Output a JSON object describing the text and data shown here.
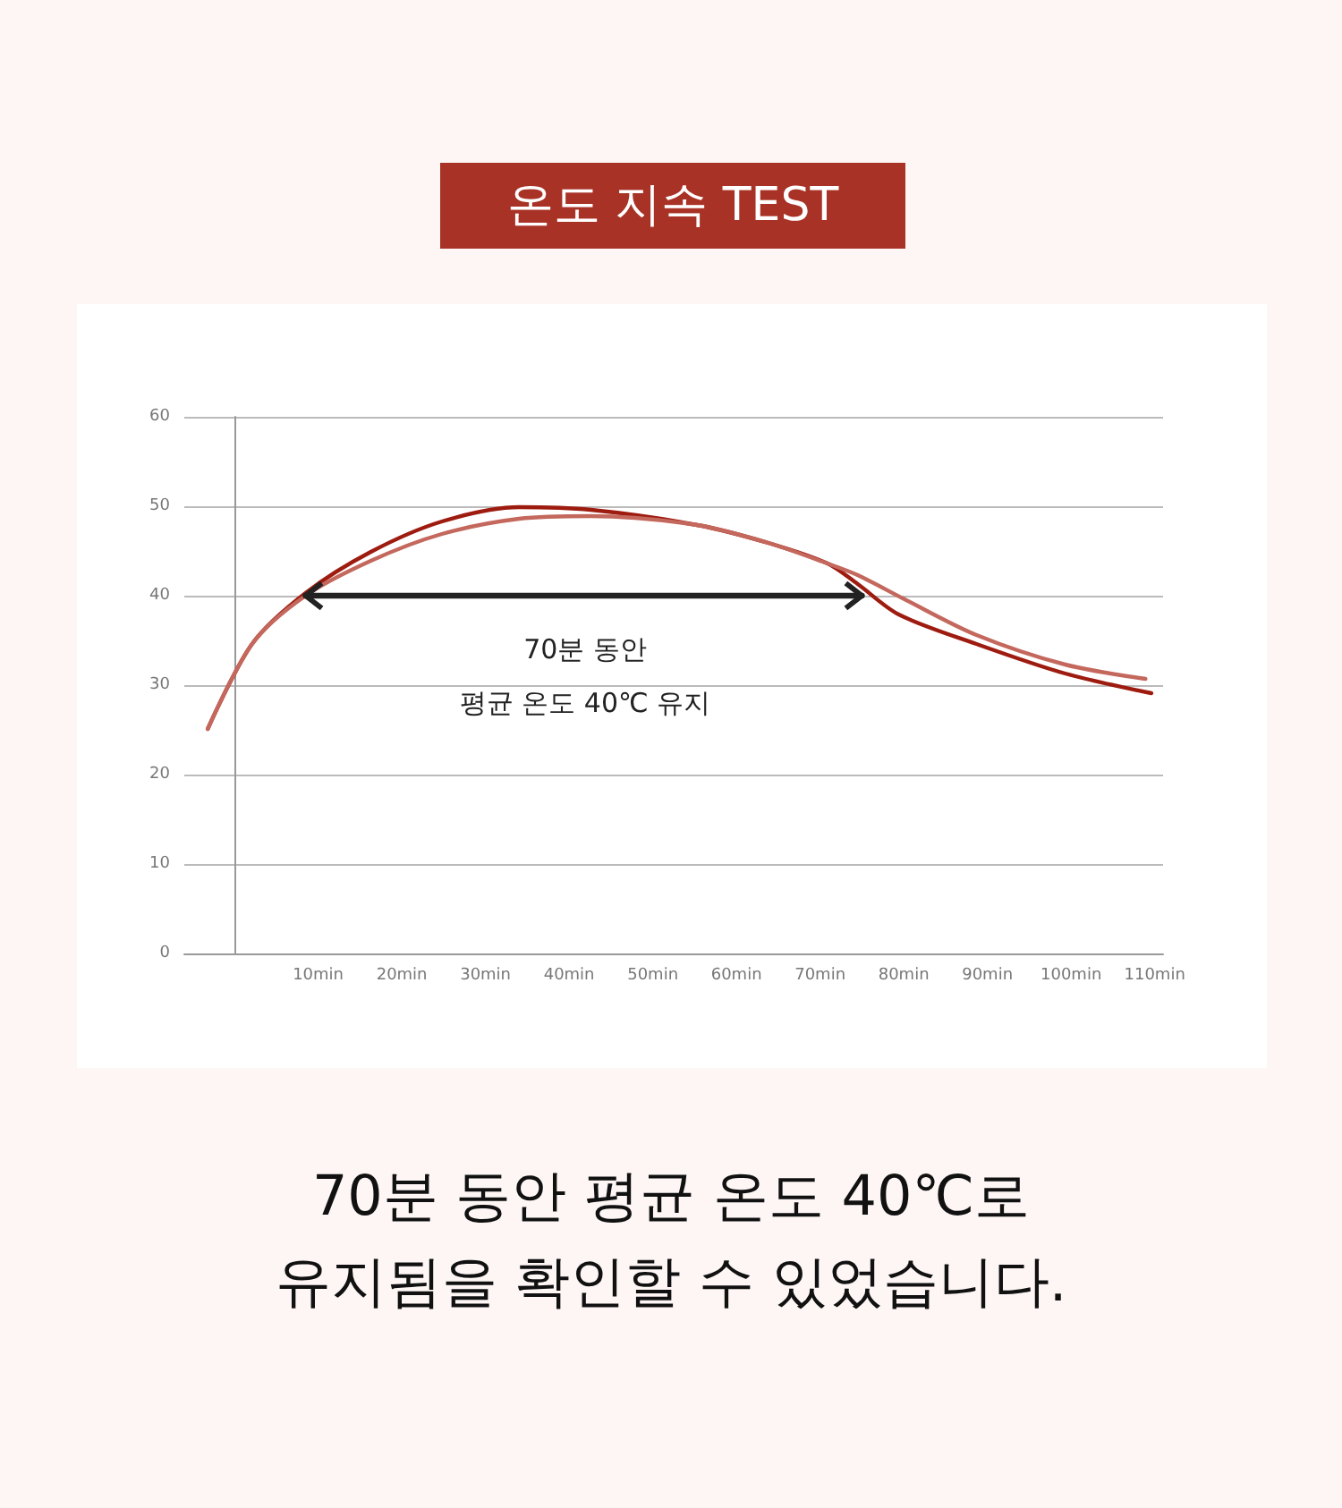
{
  "chart_data": {
    "type": "line",
    "title": "온도 지속 TEST",
    "xlim": [
      -6,
      111
    ],
    "ylim": [
      0,
      60
    ],
    "yticks": [
      0,
      10,
      20,
      30,
      40,
      50,
      60
    ],
    "xticks": [
      {
        "value": 10,
        "label": "10min"
      },
      {
        "value": 20,
        "label": "20min"
      },
      {
        "value": 30,
        "label": "30min"
      },
      {
        "value": 40,
        "label": "40min"
      },
      {
        "value": 50,
        "label": "50min"
      },
      {
        "value": 60,
        "label": "60min"
      },
      {
        "value": 70,
        "label": "70min"
      },
      {
        "value": 80,
        "label": "80min"
      },
      {
        "value": 90,
        "label": "90min"
      },
      {
        "value": 100,
        "label": "100min"
      },
      {
        "value": 110,
        "label": "110min"
      }
    ],
    "series": [
      {
        "color": "#9e1b10",
        "x": [
          -3.2,
          2.1,
          8.5,
          16.3,
          24.8,
          34,
          42.6,
          55.3,
          63.8,
          70.9,
          74.5,
          79.4,
          88.7,
          99.3,
          109.6
        ],
        "values": [
          25.1,
          34.6,
          40.3,
          44.9,
          48.3,
          49.9,
          49.6,
          47.9,
          45.9,
          43.6,
          41.3,
          37.9,
          34.6,
          31.3,
          29.1
        ]
      },
      {
        "color": "#c4685d",
        "x": [
          -3.2,
          2.1,
          8.5,
          16.3,
          24.8,
          34,
          42.6,
          55.3,
          63.8,
          70.9,
          74.5,
          80.1,
          88.7,
          99.3,
          108.9
        ],
        "values": [
          25.1,
          34.6,
          40,
          43.9,
          46.9,
          48.6,
          48.9,
          47.9,
          45.9,
          43.6,
          42.3,
          39.6,
          35.6,
          32.3,
          30.7
        ]
      },
      {
        "color": "#222222",
        "x": [
          8.5,
          75
        ],
        "values": [
          40,
          40
        ]
      }
    ],
    "grid": "y",
    "marker": "none",
    "line_style": "solid",
    "annotations": [
      "70분 동안\n평균 온도 40℃ 유지",
      "70분 동안 평균 온도 40℃로\n유지됨을 확인할 수 있었습니다."
    ]
  }
}
